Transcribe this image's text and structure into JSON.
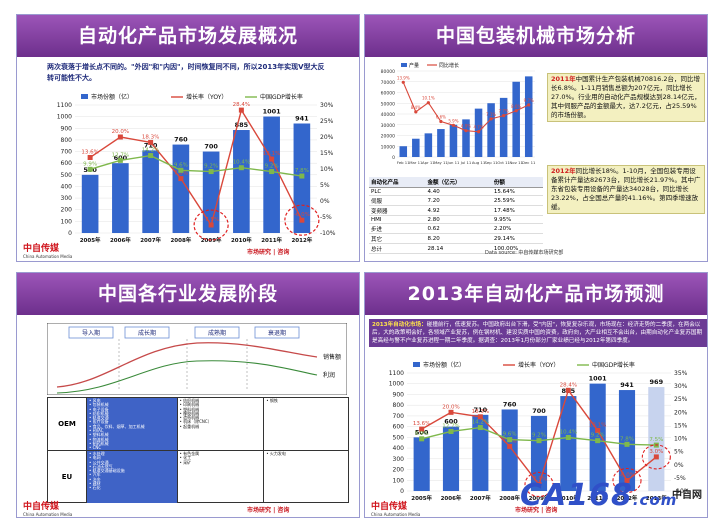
{
  "panels": {
    "tl": {
      "title": "自动化产品市场发展概况",
      "note": "两次衰落于增长点不同的。\"外因\"和\"内因\"，时间恢复同不同，所以2013年实现V型大反转可能性不大。",
      "logo": "中自传媒",
      "logo_sub": "China Automation Media",
      "brand": "市场研究 | 咨询"
    },
    "tr": {
      "title": "中国包装机械市场分析",
      "text2011_year": "2011年",
      "text2011": "中国累计生产包装机械70816.2台，同比增长6.8%。1-11月销售总额为207亿元，同比增长27.0%。行业用的自动化产品规模达到28.14亿元，其中伺服产品的金额最大，达7.2亿元，占25.59%的市场份额。",
      "text2012_year": "2012年",
      "text2012": "同比增长18%。1-10月，全国包装专用设备累计产量达82673台，同比增长21.97%。其中广东省包装专用设备的产量达34028台，同比增长23.22%，占全国总产量的41.16%。第四季增速放缓。",
      "table_headers": [
        "自动化产品",
        "金额（亿元）",
        "份额"
      ],
      "table_rows": [
        [
          "PLC",
          "4.40",
          "15.64%"
        ],
        [
          "伺服",
          "7.20",
          "25.59%"
        ],
        [
          "变频器",
          "4.92",
          "17.48%"
        ],
        [
          "HMI",
          "2.80",
          "9.95%"
        ],
        [
          "步进",
          "0.62",
          "2.20%"
        ],
        [
          "其它",
          "8.20",
          "29.14%"
        ],
        [
          "总计",
          "28.14",
          "100.00%"
        ]
      ],
      "source": "Data source: 中自传媒市场研究部",
      "legend": [
        "产量",
        "同比增长"
      ]
    },
    "bl": {
      "title": "中国各行业发展阶段",
      "stages": [
        "导入期",
        "成长期",
        "成熟期",
        "衰退期"
      ],
      "curve_labels": [
        "销售额",
        "利润"
      ],
      "rows": [
        {
          "label": "OEM",
          "col1": [
            "风电",
            "包装机械",
            "电子设备",
            "纺织机械",
            "轨道交通",
            "医疗设备",
            "食品、饮料、烟草、加工机械",
            "HVAC",
            "塑料机械",
            "物流机械",
            "制药机械",
            "CNC"
          ],
          "col2": [
            "纺织机械",
            "印刷机械",
            "塑料机械",
            "橡胶机械",
            "造纸机械",
            "机床（除CNC）",
            "起重机械"
          ],
          "col3": [
            "钢铁"
          ]
        },
        {
          "label": "EU",
          "col1": [
            "水处理",
            "电网",
            "公共交通",
            "石油天然气",
            "轨道交通基础设施",
            "汽车",
            "冶金",
            "建材",
            "石化"
          ],
          "col2": [
            "有色金属",
            "化工",
            "采矿"
          ],
          "col3": [
            "火力发电"
          ]
        }
      ],
      "logo": "中自传媒",
      "logo_sub": "China Automation Media",
      "brand": "市场研究 | 咨询"
    },
    "br": {
      "title": "2013年自动化产品市场预测",
      "note_head": "2013年自动化市场：",
      "note": "碰撞前行，低速复苏。中国政府出台下滑，受\"内因\"，恢复复杂乐观，市场现在：经济走势的二季度，在两会以后，大的政策明会好，各领域产业复苏，例在钢材机、建设实质中国的资费，政府向，大产业相互不会出台，由期自动化产业复苏国期是高经与警不户业复苏进程一期二年季度。据调查：2013年1月份部分厂家业绩已经与2012年第四季度。",
      "logo": "中自传媒",
      "logo_sub": "China Automation Media",
      "brand": "市场研究 | 咨询"
    }
  },
  "watermark": {
    "text": "CA168",
    "suffix": ".com",
    "side": "中自网"
  },
  "chart_data": [
    {
      "type": "bar",
      "title": "",
      "categories": [
        "2005年",
        "2006年",
        "2007年",
        "2008年",
        "2009年",
        "2010年",
        "2011年",
        "2012年"
      ],
      "series": [
        {
          "name": "市场份额（亿）",
          "values": [
            500,
            600,
            710,
            760,
            700,
            885,
            1001,
            941
          ]
        },
        {
          "name": "增长率（YOY）",
          "values": [
            13.6,
            20.0,
            18.3,
            7.0,
            -7.5,
            28.4,
            13.1,
            -6.0
          ]
        },
        {
          "name": "中国GDP增长率",
          "values": [
            9.9,
            12.7,
            14.2,
            9.6,
            9.2,
            10.4,
            9.2,
            7.8
          ]
        }
      ],
      "ylim": [
        0,
        1100
      ],
      "y2lim": [
        -10,
        30
      ],
      "yticks": [
        0,
        100,
        200,
        300,
        400,
        500,
        600,
        700,
        800,
        900,
        1000,
        1100
      ],
      "y2ticks": [
        "-10%",
        "-5%",
        "0%",
        "5%",
        "10%",
        "15%",
        "20%",
        "25%",
        "30%"
      ]
    },
    {
      "type": "bar",
      "title": "",
      "categories": [
        "Feb 11",
        "Mar 11",
        "Apr 11",
        "May 11",
        "Jun 11",
        "Jul 11",
        "Aug 11",
        "Sep 11",
        "Oct 11",
        "Nov 11",
        "Dec 11"
      ],
      "series": [
        {
          "name": "产量",
          "values": [
            10000,
            17000,
            22000,
            26000,
            30000,
            35000,
            45000,
            50000,
            55000,
            70000,
            75000
          ]
        },
        {
          "name": "同比增长",
          "values": [
            13.9,
            8.4,
            10.1,
            6.6,
            5.9,
            4.9,
            4.7,
            7.1,
            7.7,
            8.6,
            9.7
          ]
        }
      ],
      "ylim": [
        0,
        80000
      ],
      "yticks": [
        0,
        10000,
        20000,
        30000,
        40000,
        50000,
        60000,
        70000,
        80000
      ]
    },
    {
      "type": "bar",
      "title": "",
      "categories": [
        "2005年",
        "2006年",
        "2007年",
        "2008年",
        "2009年",
        "2010年",
        "2011年",
        "2012年",
        "2013年"
      ],
      "series": [
        {
          "name": "市场份额（亿）",
          "values": [
            500,
            600,
            710,
            760,
            700,
            885,
            1001,
            941,
            969
          ]
        },
        {
          "name": "增长率（YOY）",
          "values": [
            13.6,
            20.0,
            18.3,
            7.0,
            -7.5,
            28.4,
            13.1,
            -6.0,
            3.0
          ]
        },
        {
          "name": "中国GDP增长率",
          "values": [
            9.9,
            12.7,
            14.2,
            9.6,
            9.2,
            10.4,
            9.2,
            7.8,
            7.5
          ]
        }
      ],
      "ylim": [
        0,
        1100
      ],
      "y2lim": [
        -10,
        35
      ],
      "yticks": [
        0,
        100,
        200,
        300,
        400,
        500,
        600,
        700,
        800,
        900,
        1000,
        1100
      ],
      "y2ticks": [
        "-10%",
        "-5%",
        "0%",
        "5%",
        "10%",
        "15%",
        "20%",
        "25%",
        "30%",
        "35%"
      ]
    }
  ],
  "colors": {
    "header": "#7a3a9c",
    "bar": "#3366cc",
    "growth": "#d9483b",
    "gdp": "#7fb84c",
    "forecast": "#c7d3ee"
  }
}
